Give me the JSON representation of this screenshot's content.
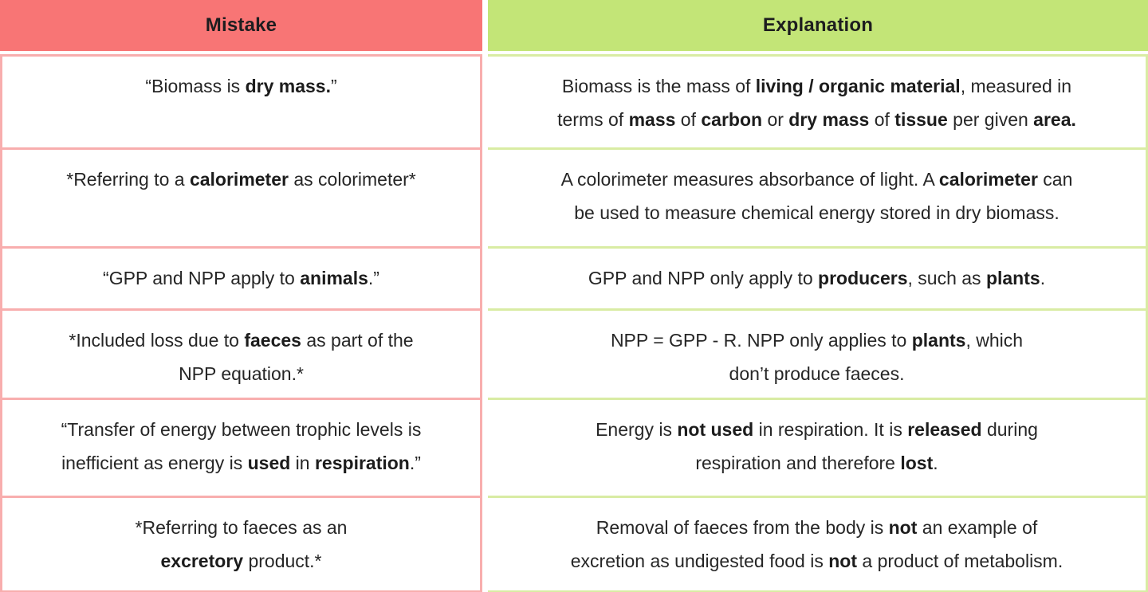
{
  "colors": {
    "header_mistake_bg": "#f87575",
    "header_explanation_bg": "#c3e577",
    "mistake_border": "#f8aeae",
    "explanation_border": "#d9eca4",
    "text": "#262626",
    "cell_bg": "#ffffff"
  },
  "table": {
    "headers": [
      {
        "label": "Mistake"
      },
      {
        "label": "Explanation"
      }
    ],
    "rows": [
      {
        "mistake": [
          {
            "t": "“Biomass is "
          },
          {
            "t": "dry mass.",
            "b": true
          },
          {
            "t": "”"
          }
        ],
        "explanation": [
          {
            "t": "Biomass is the mass of "
          },
          {
            "t": "living / organic material",
            "b": true
          },
          {
            "t": ", measured in\nterms of "
          },
          {
            "t": "mass",
            "b": true
          },
          {
            "t": " of "
          },
          {
            "t": "carbon",
            "b": true
          },
          {
            "t": " or "
          },
          {
            "t": "dry mass",
            "b": true
          },
          {
            "t": " of "
          },
          {
            "t": "tissue",
            "b": true
          },
          {
            "t": " per given "
          },
          {
            "t": "area.",
            "b": true
          }
        ]
      },
      {
        "mistake": [
          {
            "t": "*Referring to a "
          },
          {
            "t": "calorimeter",
            "b": true
          },
          {
            "t": " as colorimeter*"
          }
        ],
        "explanation": [
          {
            "t": "A colorimeter measures absorbance of light. A "
          },
          {
            "t": "calorimeter",
            "b": true
          },
          {
            "t": " can\nbe used to measure chemical energy stored in dry biomass."
          }
        ]
      },
      {
        "mistake": [
          {
            "t": "“GPP and NPP apply to "
          },
          {
            "t": "animals",
            "b": true
          },
          {
            "t": ".”"
          }
        ],
        "explanation": [
          {
            "t": "GPP and NPP only apply to "
          },
          {
            "t": "producers",
            "b": true
          },
          {
            "t": ", such as "
          },
          {
            "t": "plants",
            "b": true
          },
          {
            "t": "."
          }
        ]
      },
      {
        "mistake": [
          {
            "t": "*Included loss due to "
          },
          {
            "t": "faeces",
            "b": true
          },
          {
            "t": " as part of the\nNPP equation.*"
          }
        ],
        "explanation": [
          {
            "t": "NPP = GPP - R. NPP only applies to "
          },
          {
            "t": "plants",
            "b": true
          },
          {
            "t": ", which\ndon’t produce faeces."
          }
        ]
      },
      {
        "mistake": [
          {
            "t": "“Transfer of energy between trophic levels is\ninefficient as energy is "
          },
          {
            "t": "used",
            "b": true
          },
          {
            "t": " in "
          },
          {
            "t": "respiration",
            "b": true
          },
          {
            "t": ".”"
          }
        ],
        "explanation": [
          {
            "t": "Energy is "
          },
          {
            "t": "not used",
            "b": true
          },
          {
            "t": " in respiration. It is "
          },
          {
            "t": "released",
            "b": true
          },
          {
            "t": " during\nrespiration and therefore "
          },
          {
            "t": "lost",
            "b": true
          },
          {
            "t": "."
          }
        ]
      },
      {
        "mistake": [
          {
            "t": "*Referring to faeces as an\n"
          },
          {
            "t": "excretory",
            "b": true
          },
          {
            "t": " product.*"
          }
        ],
        "explanation": [
          {
            "t": "Removal of faeces from the body is "
          },
          {
            "t": "not",
            "b": true
          },
          {
            "t": " an example of\nexcretion as undigested food is "
          },
          {
            "t": "not",
            "b": true
          },
          {
            "t": " a product of metabolism."
          }
        ]
      }
    ]
  }
}
